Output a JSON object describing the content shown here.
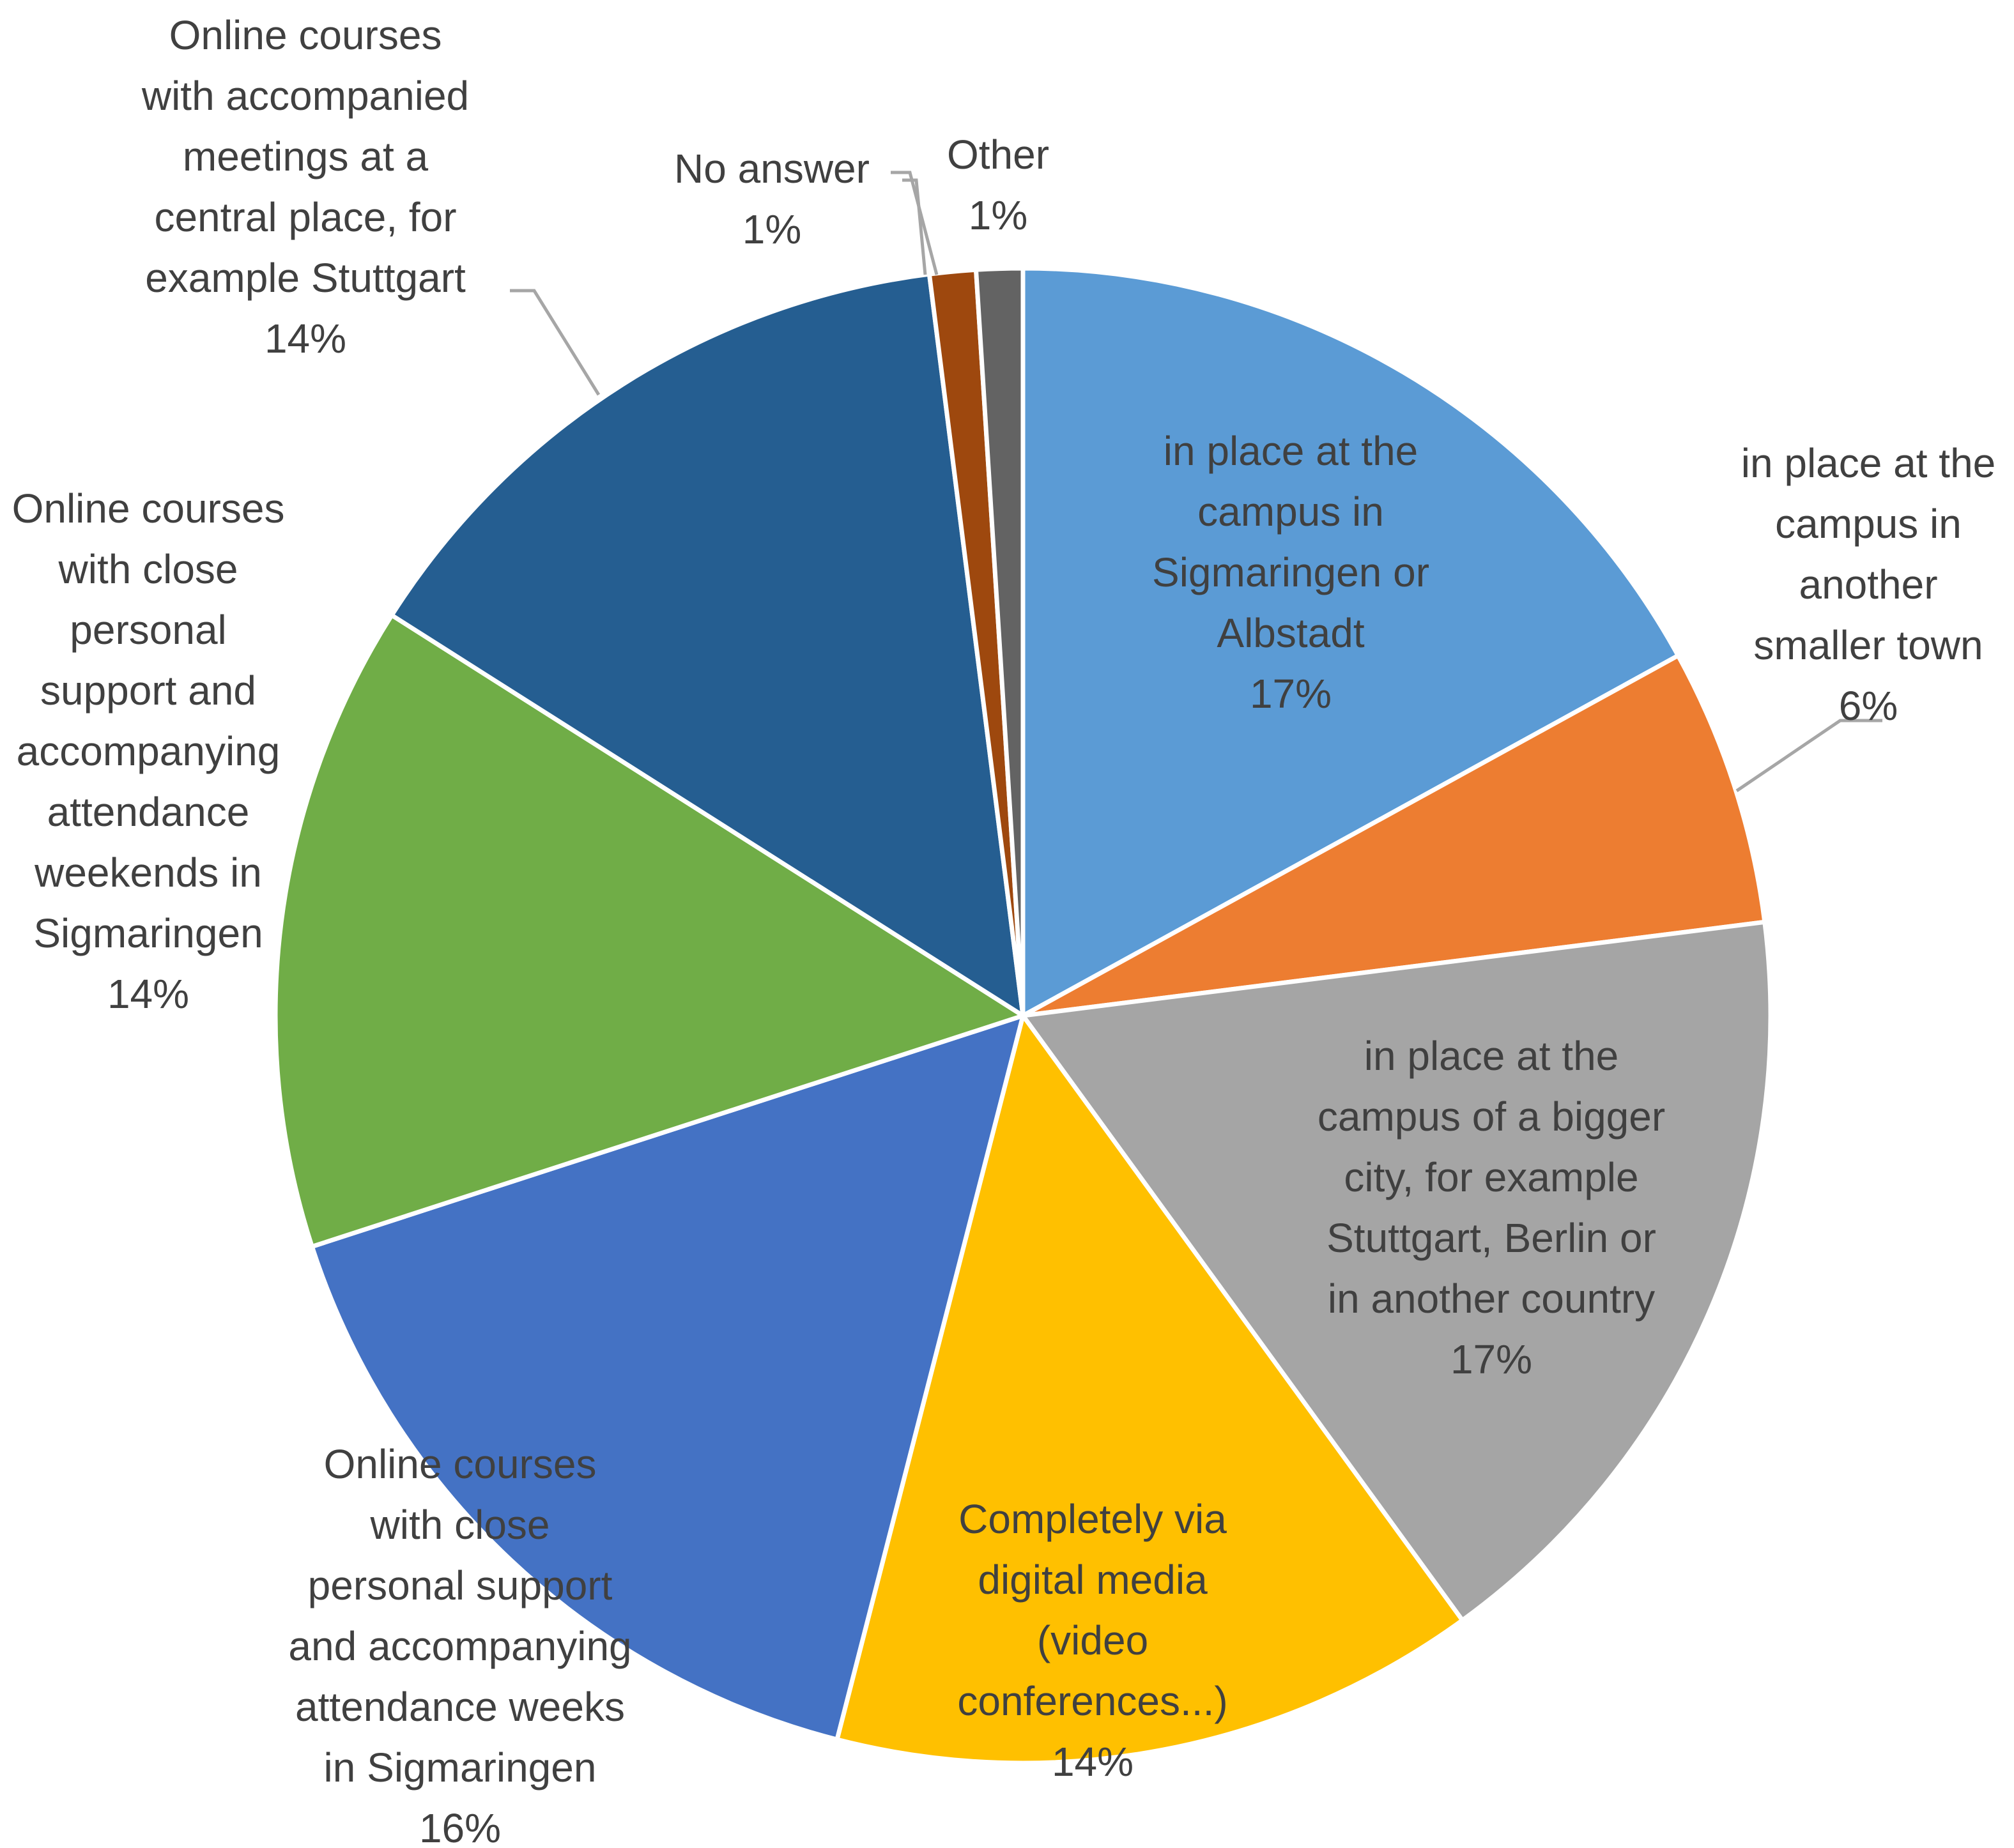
{
  "chart_data": {
    "type": "pie",
    "title": "",
    "slices": [
      {
        "label": "in place at the campus in Sigmaringen or Albstadt",
        "lines": [
          "in place at the",
          "campus in",
          "Sigmaringen or",
          "Albstadt"
        ],
        "value": 17,
        "value_label": "17%",
        "color": "#5B9BD5"
      },
      {
        "label": "in place at the campus in another smaller town",
        "lines": [
          "in place at the",
          "campus in",
          "another",
          "smaller town"
        ],
        "value": 6,
        "value_label": "6%",
        "color": "#ED7D31"
      },
      {
        "label": "in place at the campus of a bigger city, for example Stuttgart, Berlin or in another country",
        "lines": [
          "in place at the",
          "campus of a bigger",
          "city, for example",
          "Stuttgart, Berlin or",
          "in another country"
        ],
        "value": 17,
        "value_label": "17%",
        "color": "#A5A5A5"
      },
      {
        "label": "Completely via digital media (video conferences...)",
        "lines": [
          "Completely via",
          "digital media",
          "(video",
          "conferences...)"
        ],
        "value": 14,
        "value_label": "14%",
        "color": "#FFC000"
      },
      {
        "label": "Online courses with close personal support and accompanying attendance weeks in Sigmaringen",
        "lines": [
          "Online courses",
          "with close",
          "personal support",
          "and accompanying",
          "attendance weeks",
          "in Sigmaringen"
        ],
        "value": 16,
        "value_label": "16%",
        "color": "#4472C4"
      },
      {
        "label": "Online courses with close personal support and accompanying attendance weekends in Sigmaringen",
        "lines": [
          "Online courses",
          "with close",
          "personal",
          "support and",
          "accompanying",
          "attendance",
          "weekends in",
          "Sigmaringen"
        ],
        "value": 14,
        "value_label": "14%",
        "color": "#70AD47"
      },
      {
        "label": "Online courses with accompanied meetings at a central place, for example Stuttgart",
        "lines": [
          "Online courses",
          "with accompanied",
          "meetings at a",
          "central place, for",
          "example Stuttgart"
        ],
        "value": 14,
        "value_label": "14%",
        "color": "#255E91"
      },
      {
        "label": "No answer",
        "lines": [
          "No answer"
        ],
        "value": 1,
        "value_label": "1%",
        "color": "#9E480E"
      },
      {
        "label": "Other",
        "lines": [
          "Other"
        ],
        "value": 1,
        "value_label": "1%",
        "color": "#636363"
      }
    ]
  }
}
